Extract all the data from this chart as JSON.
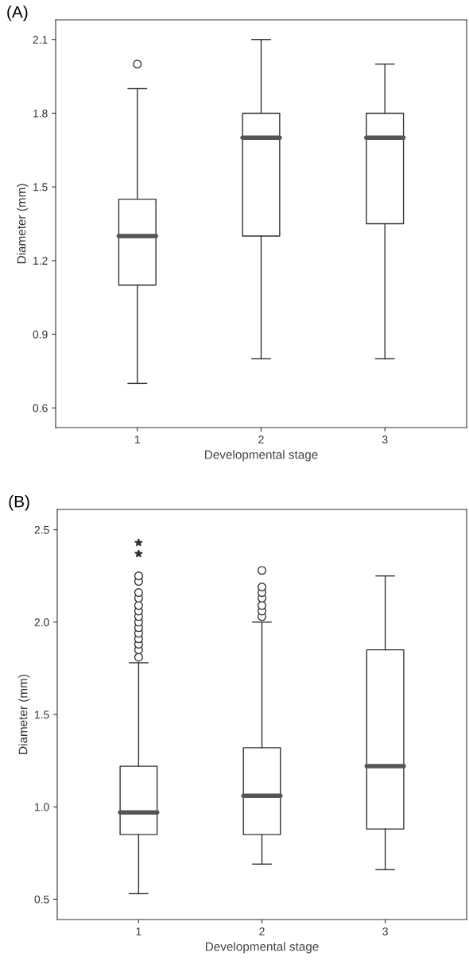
{
  "chart_data": [
    {
      "type": "box",
      "title": "(A)",
      "xlabel": "Developmental stage",
      "ylabel": "Diameter (mm)",
      "categories": [
        "1",
        "2",
        "3"
      ],
      "boxes": [
        {
          "low": 0.7,
          "q1": 1.1,
          "median": 1.3,
          "q3": 1.45,
          "high": 1.9,
          "outliers": [
            2.0
          ]
        },
        {
          "low": 0.8,
          "q1": 1.3,
          "median": 1.7,
          "q3": 1.8,
          "high": 2.1
        },
        {
          "low": 0.8,
          "q1": 1.35,
          "median": 1.7,
          "q3": 1.8,
          "high": 2.0
        }
      ],
      "ylim": [
        0.52,
        2.18
      ],
      "yticks": [
        {
          "value": 0.6,
          "label": "0.6"
        },
        {
          "value": 0.9,
          "label": "0.9"
        },
        {
          "value": 1.2,
          "label": "1.2"
        },
        {
          "value": 1.5,
          "label": "1.5"
        },
        {
          "value": 1.8,
          "label": "1.8"
        },
        {
          "value": 2.1,
          "label": "2.1"
        }
      ],
      "grid": false
    },
    {
      "type": "box",
      "title": "(B)",
      "xlabel": "Developmental stage",
      "ylabel": "Diameter (mm)",
      "categories": [
        "1",
        "2",
        "3"
      ],
      "boxes": [
        {
          "low": 0.53,
          "q1": 0.85,
          "median": 0.97,
          "q3": 1.22,
          "high": 1.78,
          "outliers": [
            1.81,
            1.85,
            1.88,
            1.91,
            1.94,
            1.97,
            2.0,
            2.03,
            2.06,
            2.09,
            2.13,
            2.16,
            2.22,
            2.25
          ]
        },
        {
          "low": 0.69,
          "q1": 0.85,
          "median": 1.06,
          "q3": 1.32,
          "high": 2.0,
          "outliers": [
            2.03,
            2.06,
            2.09,
            2.13,
            2.16,
            2.19,
            2.28
          ]
        },
        {
          "low": 0.66,
          "q1": 0.88,
          "median": 1.22,
          "q3": 1.85,
          "high": 2.25
        }
      ],
      "series": [
        {
          "type": "scatter",
          "marker": "star",
          "color": "#333333",
          "x": [
            "1",
            "1"
          ],
          "values": [
            2.43,
            2.37
          ]
        }
      ],
      "ylim": [
        0.39,
        2.61
      ],
      "yticks": [
        {
          "value": 0.5,
          "label": "0.5"
        },
        {
          "value": 1.0,
          "label": "1.0"
        },
        {
          "value": 1.5,
          "label": "1.5"
        },
        {
          "value": 2.0,
          "label": "2.0"
        },
        {
          "value": 2.5,
          "label": "2.5"
        }
      ],
      "grid": false
    }
  ]
}
